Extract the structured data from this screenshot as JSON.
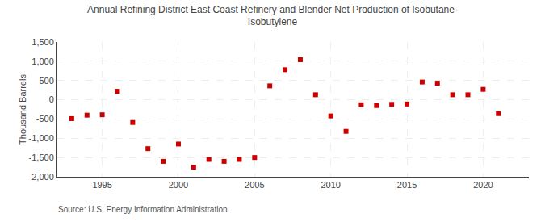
{
  "chart_data": {
    "type": "scatter",
    "title": "Annual Refining District East Coast Refinery and Blender Net Production of Isobutane-\nIsobutylene",
    "ylabel": "Thousand Barrels",
    "source": "Source: U.S. Energy Information Administration",
    "x": [
      1993,
      1994,
      1995,
      1996,
      1997,
      1998,
      1999,
      2000,
      2001,
      2002,
      2003,
      2004,
      2005,
      2006,
      2007,
      2008,
      2009,
      2010,
      2011,
      2012,
      2013,
      2014,
      2015,
      2016,
      2017,
      2018,
      2019,
      2020,
      2021
    ],
    "values": [
      -490,
      -400,
      -390,
      220,
      -590,
      -1270,
      -1600,
      -1150,
      -1750,
      -1550,
      -1600,
      -1550,
      -1500,
      360,
      780,
      1040,
      130,
      -420,
      -820,
      -130,
      -150,
      -120,
      -110,
      460,
      430,
      130,
      130,
      270,
      -360
    ],
    "color": "#cc0000",
    "marker": "square",
    "xlim": [
      1992,
      2023
    ],
    "ylim": [
      -2000,
      1500
    ],
    "xticks": [
      1995,
      2000,
      2005,
      2010,
      2015,
      2020
    ],
    "yticks": [
      {
        "value": -2000,
        "label": "-2,000"
      },
      {
        "value": -1500,
        "label": "-1,500"
      },
      {
        "value": -1000,
        "label": "-1,000"
      },
      -500,
      0,
      500,
      {
        "value": 1000,
        "label": "1,000"
      },
      {
        "value": 1500,
        "label": "1,500"
      }
    ],
    "grid": true
  }
}
